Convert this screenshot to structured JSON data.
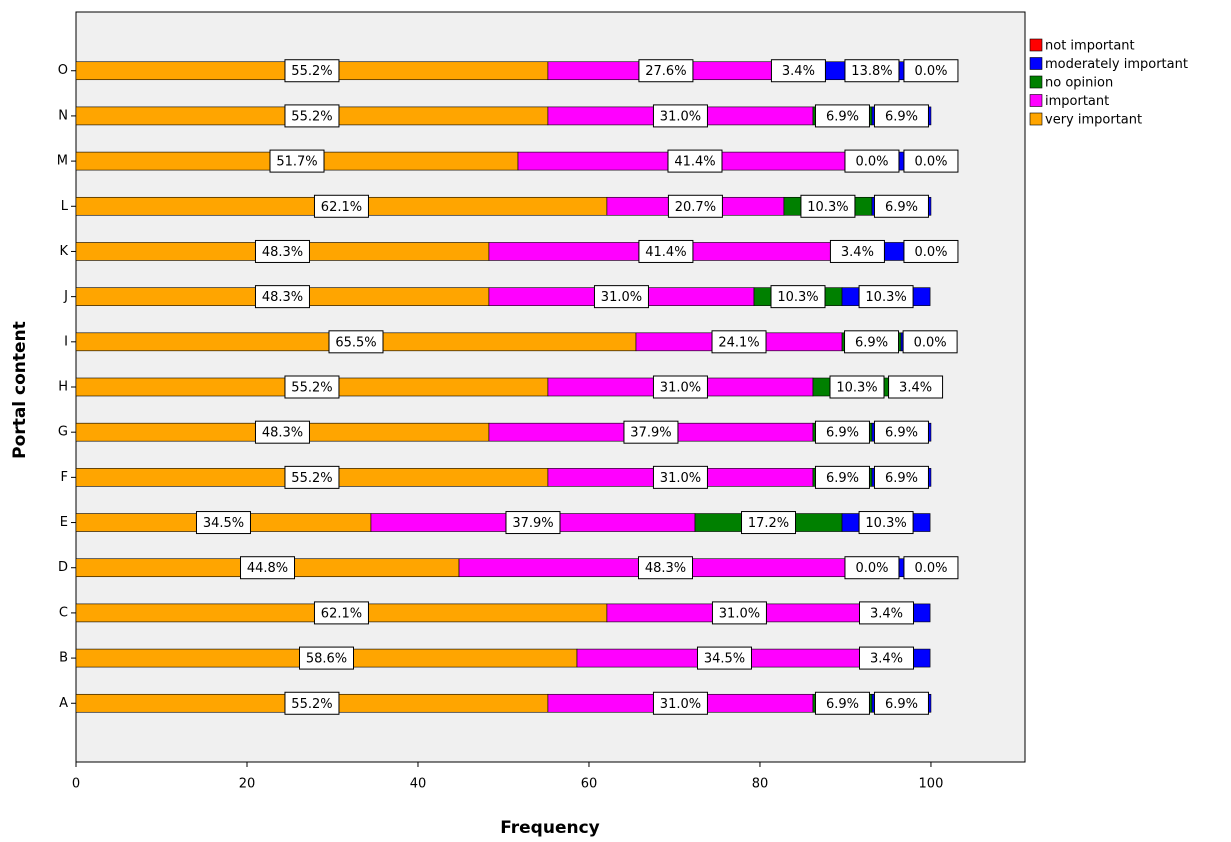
{
  "chart_data": {
    "type": "stacked-barh",
    "x_label": "Frequency",
    "y_label": "Portal content",
    "categories": [
      "A",
      "B",
      "C",
      "D",
      "E",
      "F",
      "G",
      "H",
      "I",
      "J",
      "K",
      "L",
      "M",
      "N",
      "O"
    ],
    "series": [
      {
        "name": "very important",
        "color": "#ffa500",
        "values": [
          55.2,
          58.6,
          62.1,
          44.8,
          34.5,
          55.2,
          48.3,
          55.2,
          65.5,
          48.3,
          48.3,
          62.1,
          51.7,
          55.2,
          55.2
        ],
        "value_labels": [
          "55.2%",
          "58.6%",
          "62.1%",
          "44.8%",
          "34.5%",
          "55.2%",
          "48.3%",
          "55.2%",
          "65.5%",
          "48.3%",
          "48.3%",
          "62.1%",
          "51.7%",
          "55.2%",
          "55.2%"
        ]
      },
      {
        "name": "important",
        "color": "#ff00ff",
        "values": [
          31.0,
          34.5,
          31.0,
          48.3,
          37.9,
          31.0,
          37.9,
          31.0,
          24.1,
          31.0,
          41.4,
          20.7,
          41.4,
          31.0,
          27.6
        ],
        "value_labels": [
          "31.0%",
          "34.5%",
          "31.0%",
          "48.3%",
          "37.9%",
          "31.0%",
          "37.9%",
          "31.0%",
          "24.1%",
          "31.0%",
          "41.4%",
          "20.7%",
          "41.4%",
          "31.0%",
          "27.6%"
        ]
      },
      {
        "name": "no opinion",
        "color": "#008000",
        "values": [
          6.9,
          3.4,
          3.4,
          0.0,
          17.2,
          6.9,
          6.9,
          10.3,
          6.9,
          10.3,
          3.4,
          10.3,
          0.0,
          6.9,
          3.4
        ],
        "value_labels": [
          "6.9%",
          "3.4%",
          "3.4%",
          "0.0%",
          "17.2%",
          "6.9%",
          "6.9%",
          "10.3%",
          "6.9%",
          "10.3%",
          "3.4%",
          "10.3%",
          "0.0%",
          "6.9%",
          "3.4%"
        ]
      },
      {
        "name": "moderately important",
        "color": "#0000ff",
        "values": [
          6.9,
          3.4,
          3.4,
          6.9,
          10.3,
          6.9,
          6.9,
          3.4,
          3.4,
          10.3,
          6.9,
          6.9,
          6.9,
          6.9,
          13.8
        ],
        "value_labels": [
          "6.9%",
          null,
          null,
          null,
          "10.3%",
          "6.9%",
          "6.9%",
          "3.4%",
          null,
          "10.3%",
          null,
          "6.9%",
          null,
          "6.9%",
          "13.8%"
        ]
      },
      {
        "name": "not important",
        "color": "#ff0000",
        "values": [
          0,
          0,
          0,
          0.0,
          0,
          0,
          0,
          0,
          0.0,
          0,
          0.0,
          0,
          0.0,
          0,
          0.0
        ],
        "value_labels": [
          null,
          null,
          null,
          "0.0%",
          null,
          null,
          null,
          null,
          "0.0%",
          null,
          "0.0%",
          null,
          "0.0%",
          null,
          "0.0%"
        ]
      }
    ],
    "xlim": [
      0,
      111
    ],
    "xticks": [
      0,
      20,
      40,
      60,
      80,
      100
    ],
    "legend": "right"
  }
}
